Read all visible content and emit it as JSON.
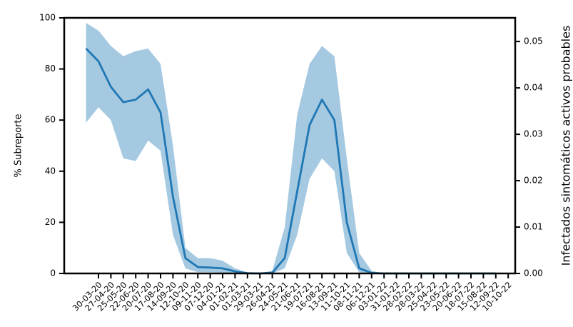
{
  "chart_data": {
    "type": "line",
    "ylabel": "% Subreporte",
    "y2label": "Infectados sintomáticos activos probables",
    "categories": [
      null,
      "30-03-20",
      "27-04-20",
      "25-05-20",
      "22-06-20",
      "20-07-20",
      "17-08-20",
      "14-09-20",
      "12-10-20",
      "09-11-20",
      "07-12-20",
      "04-01-21",
      "01-02-21",
      "01-03-21",
      "29-03-21",
      "26-04-21",
      "24-05-21",
      "21-06-21",
      "19-07-21",
      "16-08-21",
      "13-09-21",
      "11-10-21",
      "08-11-21",
      "06-12-21",
      "03-01-22",
      "31-01-22",
      "28-02-22",
      "28-03-22",
      "25-04-22",
      "23-05-22",
      "20-06-22",
      "18-07-22",
      "15-08-22",
      "12-09-22",
      "10-10-22"
    ],
    "series": [
      {
        "color": "#1f77b4",
        "values": [
          88,
          83,
          73,
          67,
          68,
          72,
          63,
          30,
          6,
          2.5,
          2.3,
          2,
          0.8,
          0.1,
          0,
          0.3,
          6,
          32,
          58,
          68,
          60,
          20,
          2,
          0.2,
          0,
          0,
          0,
          0,
          0,
          0,
          0,
          0,
          0,
          0,
          null
        ],
        "upper": [
          98,
          95,
          89,
          85,
          87,
          88,
          82,
          50,
          10,
          6,
          6,
          5,
          2,
          0.3,
          0.1,
          1,
          18,
          62,
          82,
          89,
          85,
          45,
          8,
          1,
          0,
          0,
          0,
          0,
          0,
          0,
          0,
          0,
          0,
          0,
          null
        ],
        "lower": [
          59,
          65,
          60,
          45,
          44,
          52,
          48,
          15,
          2,
          0.5,
          0.5,
          0.3,
          0,
          0,
          0,
          0,
          2,
          15,
          37,
          45,
          40,
          8,
          0.5,
          0,
          0,
          0,
          0,
          0,
          0,
          0,
          0,
          0,
          0,
          0,
          null
        ]
      }
    ],
    "ylim": [
      0,
      100
    ],
    "yticks": [
      0,
      20,
      40,
      60,
      80,
      100
    ],
    "y2lim": [
      0,
      0.0551
    ],
    "y2ticks": [
      {
        "value": 0,
        "label": "0.00"
      },
      {
        "value": 0.01,
        "label": "0.01"
      },
      {
        "value": 0.02,
        "label": "0.02"
      },
      {
        "value": 0.03,
        "label": "0.03"
      },
      {
        "value": 0.04,
        "label": "0.04"
      },
      {
        "value": 0.05,
        "label": "0.05"
      }
    ]
  }
}
